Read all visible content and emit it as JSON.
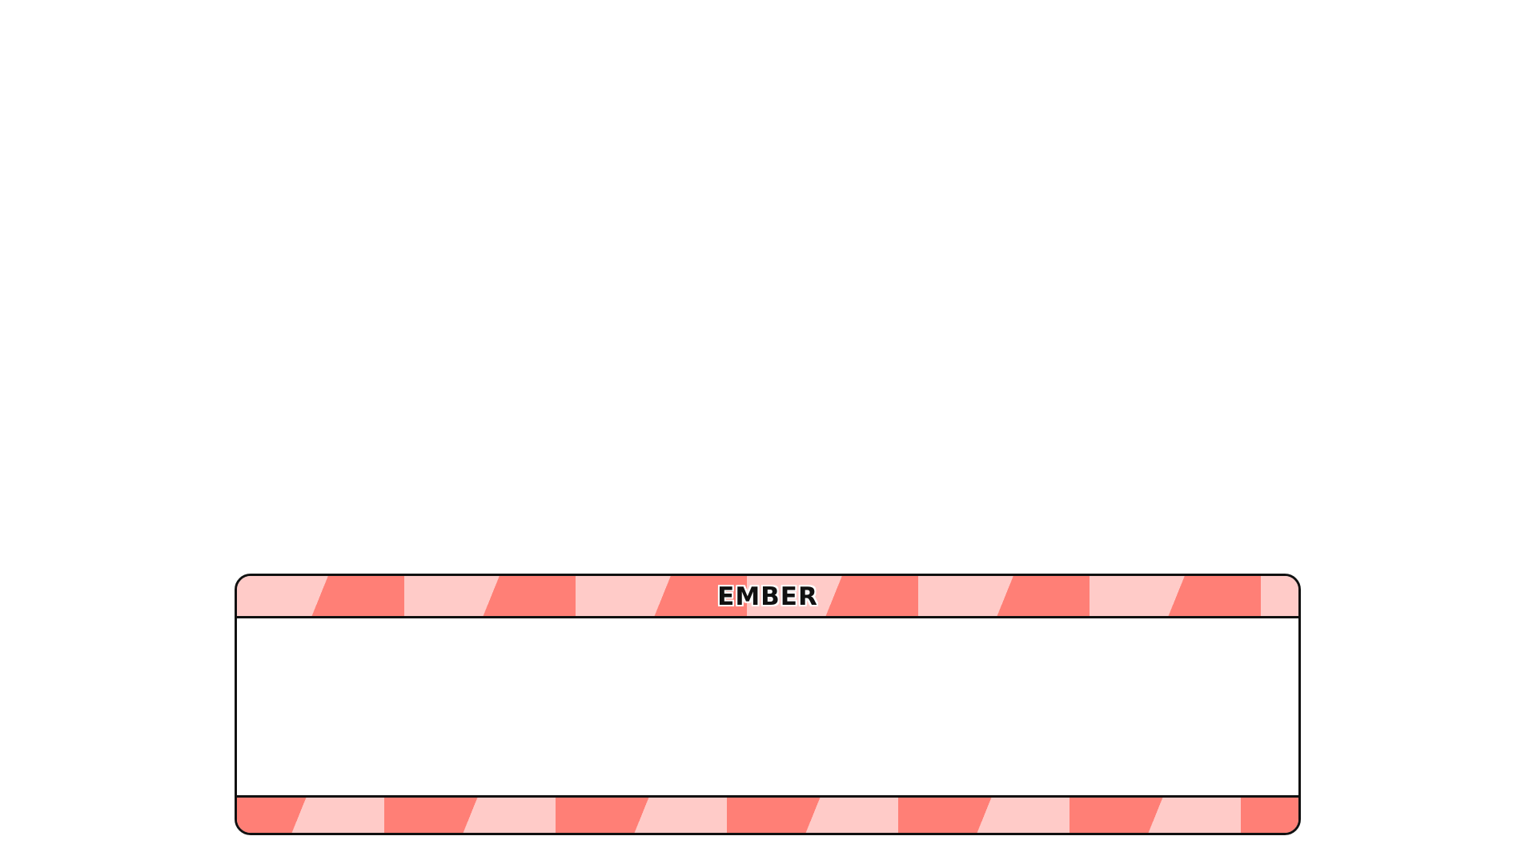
{
  "dialog": {
    "speaker": "EMBER",
    "text": ""
  },
  "colors": {
    "stripe_dark": "#ff7f76",
    "stripe_light": "#ffcbc8",
    "border": "#111111",
    "background": "#ffffff"
  }
}
